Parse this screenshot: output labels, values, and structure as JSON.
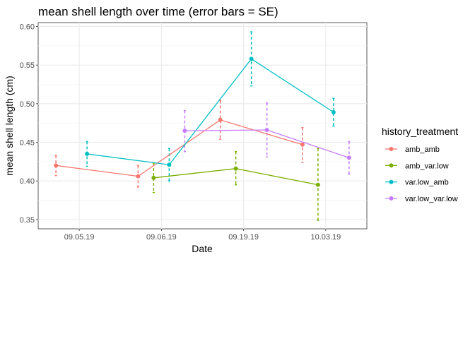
{
  "chart_data": {
    "type": "line",
    "title": "mean shell length over time (error bars = SE)",
    "xlabel": "Date",
    "ylabel": "mean shell length (cm)",
    "categories": [
      "09.05.19",
      "09.06.19",
      "09.19.19",
      "10.03.19"
    ],
    "ylim": [
      0.338,
      0.605
    ],
    "yticks": [
      0.35,
      0.4,
      0.45,
      0.5,
      0.55,
      0.6
    ],
    "ytick_labels": [
      "0.35",
      "0.40",
      "0.45",
      "0.50",
      "0.55",
      "0.60"
    ],
    "legend": {
      "title": "history_treatment",
      "position": "right"
    },
    "series": [
      {
        "name": "amb_amb",
        "color": "#F8766D",
        "values": [
          0.42,
          0.406,
          0.479,
          0.447
        ],
        "lower": [
          0.407,
          0.392,
          0.454,
          0.424
        ],
        "upper": [
          0.433,
          0.42,
          0.504,
          0.469
        ]
      },
      {
        "name": "amb_var.low",
        "color": "#7CAE00",
        "values": [
          null,
          0.404,
          0.416,
          0.395
        ],
        "lower": [
          null,
          0.385,
          0.395,
          0.349
        ],
        "upper": [
          null,
          0.423,
          0.438,
          0.442
        ]
      },
      {
        "name": "var.low_amb",
        "color": "#00BFC4",
        "values": [
          0.435,
          0.421,
          0.558,
          0.489
        ],
        "lower": [
          0.419,
          0.4,
          0.523,
          0.471
        ],
        "upper": [
          0.451,
          0.442,
          0.593,
          0.507
        ]
      },
      {
        "name": "var.low_var.low",
        "color": "#C77CFF",
        "values": [
          null,
          0.465,
          0.466,
          0.43
        ],
        "lower": [
          null,
          0.438,
          0.431,
          0.409
        ],
        "upper": [
          null,
          0.491,
          0.501,
          0.451
        ]
      }
    ]
  }
}
